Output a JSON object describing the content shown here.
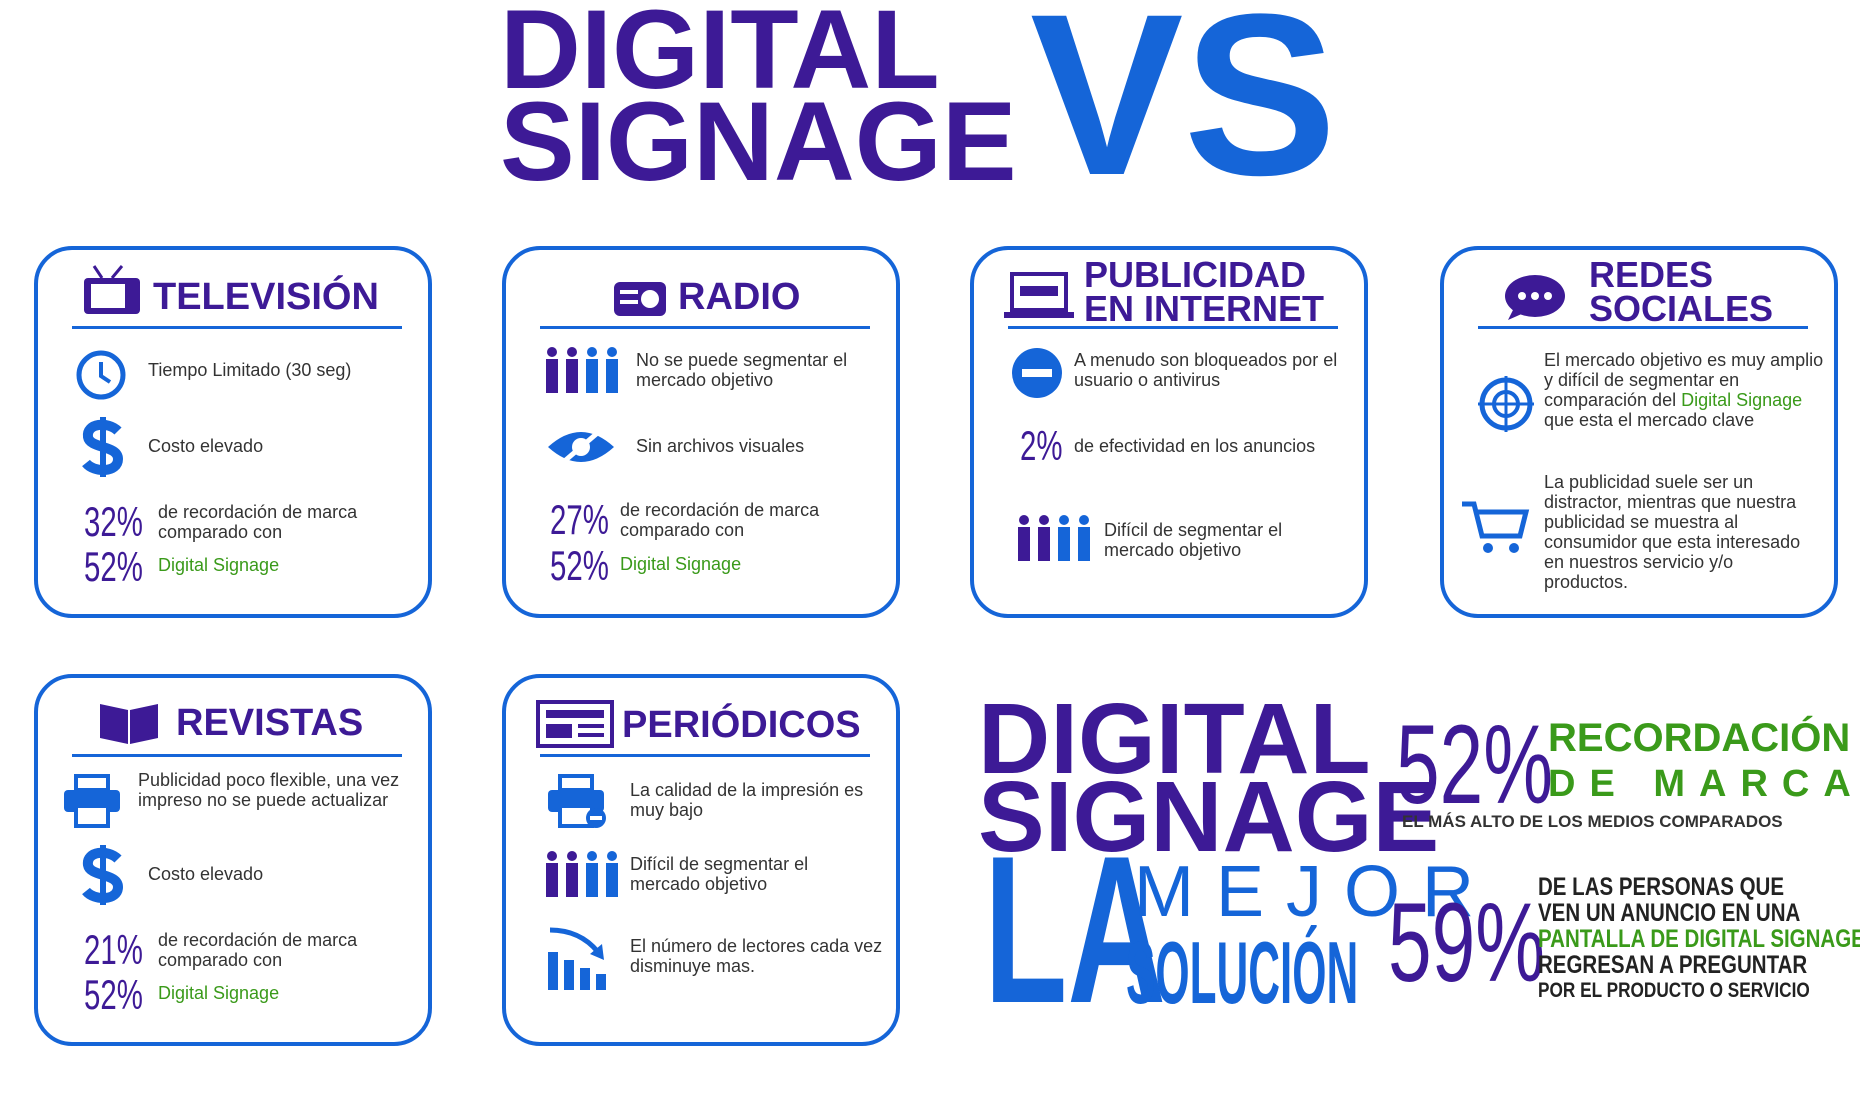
{
  "header": {
    "line1": "DIGITAL",
    "line2": "SIGNAGE",
    "vs": "VS"
  },
  "cards": [
    {
      "title": "TELEVISIÓN",
      "items": [
        "Tiempo Limitado (30 seg)",
        "Costo elevado"
      ],
      "stats": [
        {
          "value": "32%",
          "text": "de recordación de marca comparado con"
        },
        {
          "value": "52%",
          "text": "Digital Signage"
        }
      ]
    },
    {
      "title": "RADIO",
      "items": [
        "No se puede segmentar el mercado objetivo",
        "Sin archivos visuales"
      ],
      "stats": [
        {
          "value": "27%",
          "text": "de recordación de marca comparado con"
        },
        {
          "value": "52%",
          "text": "Digital Signage"
        }
      ]
    },
    {
      "title": "PUBLICIDAD EN INTERNET",
      "items": [
        "A menudo son bloqueados por el usuario o antivirus",
        "Difícil de segmentar el mercado objetivo"
      ],
      "stats": [
        {
          "value": "2%",
          "text": "de efectividad en los anuncios"
        }
      ]
    },
    {
      "title": "REDES SOCIALES",
      "items": [
        [
          "El mercado objetivo es muy amplio y difícil de segmentar en comparación del ",
          "Digital Signage",
          " que esta el mercado clave"
        ],
        "La publicidad suele ser un distractor, mientras que nuestra publicidad se muestra al consumidor que esta interesado en nuestros servicio y/o productos."
      ]
    },
    {
      "title": "REVISTAS",
      "items": [
        "Publicidad poco flexible, una vez impreso no se puede actualizar",
        "Costo elevado"
      ],
      "stats": [
        {
          "value": "21%",
          "text": "de recordación de marca comparado con"
        },
        {
          "value": "52%",
          "text": "Digital Signage"
        }
      ]
    },
    {
      "title": "PERIÓDICOS",
      "items": [
        "La calidad de la impresión es muy bajo",
        "Difícil de segmentar el mercado objetivo",
        "El número de lectores cada vez disminuye mas."
      ]
    }
  ],
  "conclusion": {
    "line1": "DIGITAL",
    "line2": "SIGNAGE",
    "la": "LA",
    "mejor": "MEJOR",
    "solucion": "SOLUCIÓN"
  },
  "stat1": {
    "value": "52%",
    "title1": "RECORDACIÓN",
    "title2": "DE MARCA",
    "note": "EL MÁS ALTO DE LOS MEDIOS COMPARADOS"
  },
  "stat2": {
    "value": "59%",
    "lines": [
      "DE LAS PERSONAS QUE",
      "VEN UN ANUNCIO EN UNA",
      "PANTALLA DE DIGITAL SIGNAGE",
      "REGRESAN A PREGUNTAR",
      "POR EL PRODUCTO O SERVICIO"
    ]
  }
}
